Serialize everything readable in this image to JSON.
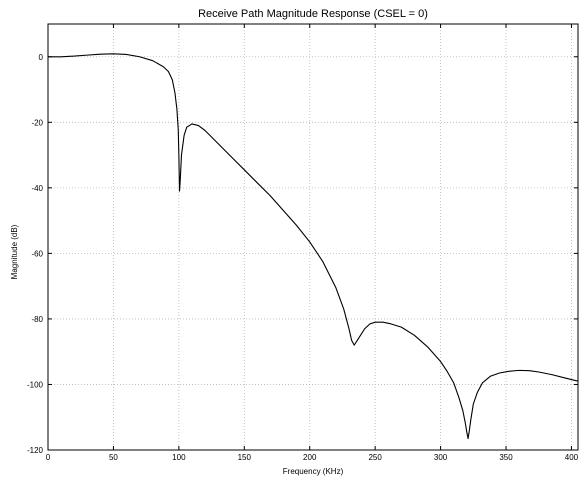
{
  "chart_data": {
    "type": "line",
    "title": "Receive Path Magnitude Response (CSEL = 0)",
    "xlabel": "Frequency (KHz)",
    "ylabel": "Magnitude (dB)",
    "xlim": [
      0,
      405
    ],
    "ylim": [
      -120,
      10
    ],
    "x_ticks": [
      0,
      50,
      100,
      150,
      200,
      250,
      300,
      350,
      400
    ],
    "y_ticks": [
      0,
      -20,
      -40,
      -60,
      -80,
      -100,
      -120
    ],
    "grid": true,
    "series": [
      {
        "x": [
          0,
          10,
          20,
          30,
          40,
          50,
          60,
          70,
          80,
          88,
          92,
          95,
          97,
          98.5,
          99.5,
          100,
          100.5,
          101,
          102,
          104,
          106,
          110,
          115,
          120,
          130,
          140,
          150,
          160,
          170,
          180,
          190,
          200,
          210,
          220,
          226,
          230,
          232,
          234,
          238,
          242,
          246,
          250,
          256,
          262,
          270,
          280,
          290,
          300,
          305,
          310,
          314,
          317,
          319,
          320,
          321,
          322,
          323,
          325,
          328,
          332,
          338,
          345,
          352,
          360,
          368,
          375,
          385,
          395,
          405
        ],
        "y": [
          0,
          0,
          0.2,
          0.5,
          0.8,
          0.9,
          0.7,
          0,
          -1.2,
          -3,
          -4.5,
          -7,
          -11,
          -16,
          -22,
          -30,
          -41,
          -38,
          -30,
          -24,
          -21.5,
          -20.5,
          -21,
          -22.5,
          -26.5,
          -30.5,
          -34.5,
          -38.5,
          -42.5,
          -47,
          -51.5,
          -56.5,
          -62.5,
          -70.5,
          -77,
          -83,
          -86.5,
          -88,
          -85.5,
          -83,
          -81.5,
          -81,
          -81,
          -81.5,
          -82.5,
          -85,
          -88.5,
          -93,
          -96,
          -99.5,
          -104,
          -108,
          -112,
          -114.5,
          -116.5,
          -114,
          -111,
          -106,
          -102.5,
          -99.5,
          -97.5,
          -96.5,
          -96,
          -95.7,
          -95.8,
          -96.2,
          -97,
          -98,
          -99
        ]
      }
    ]
  }
}
